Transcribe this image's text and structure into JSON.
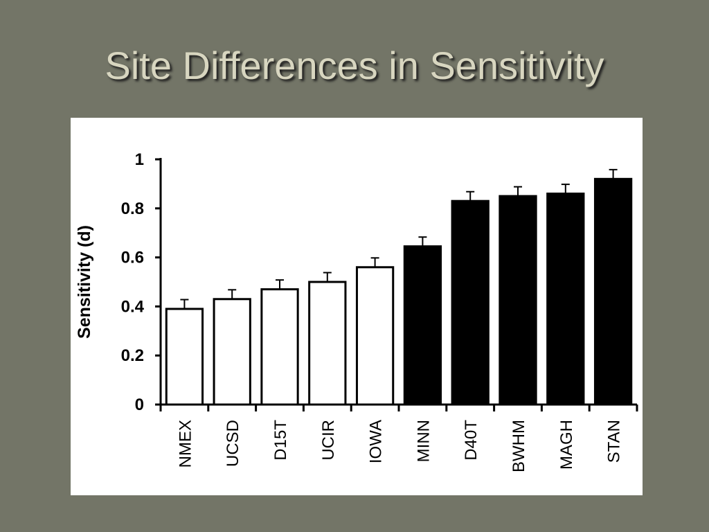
{
  "slide": {
    "title": "Site Differences in Sensitivity"
  },
  "colors": {
    "background": "#737567",
    "title": "#d8d6c0",
    "panel": "#ffffff",
    "highlight_fill": "#000000",
    "base_fill": "#ffffff",
    "stroke": "#000000"
  },
  "chart_data": {
    "type": "bar",
    "title": "",
    "xlabel": "",
    "ylabel": "Sensitivity (d)",
    "ylim": [
      0,
      1
    ],
    "yticks": [
      0,
      0.2,
      0.4,
      0.6,
      0.8,
      1
    ],
    "ytick_labels": [
      "0",
      "0.2",
      "0.4",
      "0.6",
      "0.8",
      "1"
    ],
    "grid": false,
    "categories": [
      "NMEX",
      "UCSD",
      "D15T",
      "UCIR",
      "IOWA",
      "MINN",
      "D40T",
      "BWHM",
      "MAGH",
      "STAN"
    ],
    "values": [
      0.39,
      0.43,
      0.47,
      0.5,
      0.56,
      0.645,
      0.83,
      0.85,
      0.86,
      0.92
    ],
    "error_upper": [
      0.038,
      0.038,
      0.038,
      0.038,
      0.038,
      0.038,
      0.038,
      0.038,
      0.038,
      0.038
    ],
    "bar_fill": [
      "white",
      "white",
      "white",
      "white",
      "white",
      "black",
      "black",
      "black",
      "black",
      "black"
    ]
  }
}
